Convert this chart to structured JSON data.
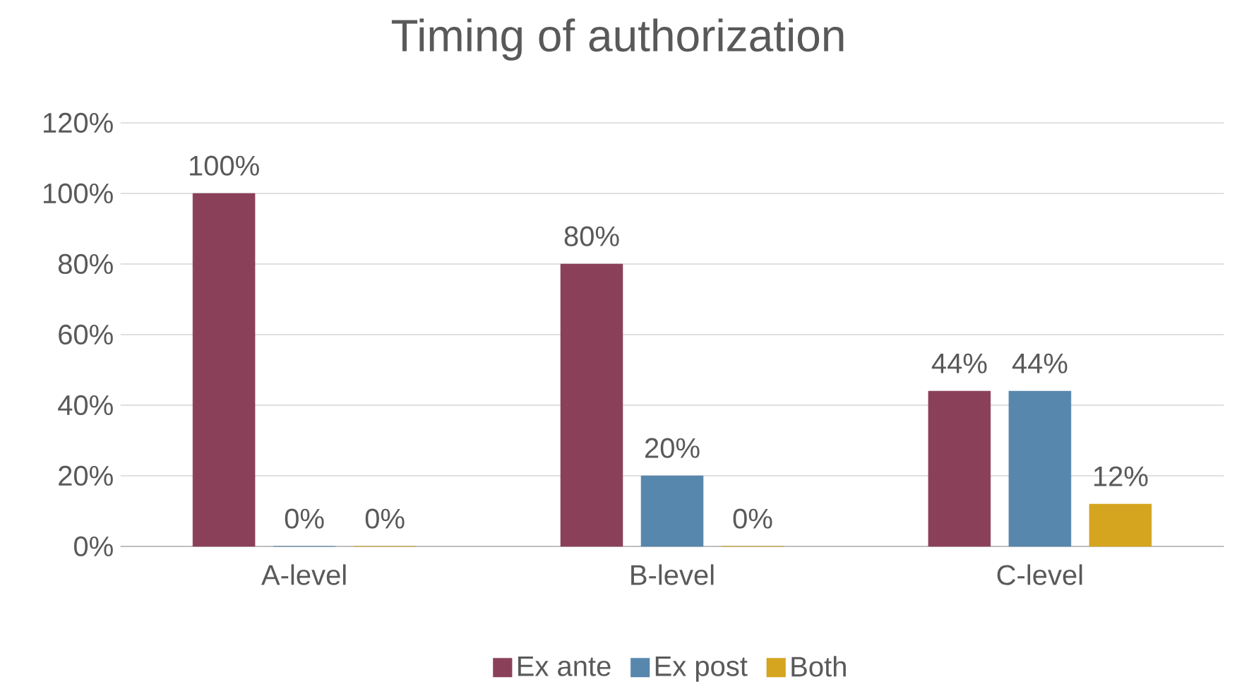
{
  "chart_data": {
    "type": "bar",
    "title": "Timing of authorization",
    "categories": [
      "A-level",
      "B-level",
      "C-level"
    ],
    "series": [
      {
        "name": "Ex ante",
        "color": "#8b4059",
        "values": [
          100,
          80,
          44
        ],
        "value_labels": [
          "100%",
          "80%",
          "44%"
        ]
      },
      {
        "name": "Ex post",
        "color": "#5787ad",
        "values": [
          0,
          20,
          44
        ],
        "value_labels": [
          "0%",
          "20%",
          "44%"
        ]
      },
      {
        "name": "Both",
        "color": "#d5a51f",
        "values": [
          0,
          0,
          12
        ],
        "value_labels": [
          "0%",
          "0%",
          "12%"
        ]
      }
    ],
    "ylim": [
      0,
      120
    ],
    "yticks": [
      {
        "value": 0,
        "label": "0%"
      },
      {
        "value": 20,
        "label": "20%"
      },
      {
        "value": 40,
        "label": "40%"
      },
      {
        "value": 60,
        "label": "60%"
      },
      {
        "value": 80,
        "label": "80%"
      },
      {
        "value": 100,
        "label": "100%"
      },
      {
        "value": 120,
        "label": "120%"
      }
    ],
    "grid": "y",
    "legend": "bottom"
  }
}
